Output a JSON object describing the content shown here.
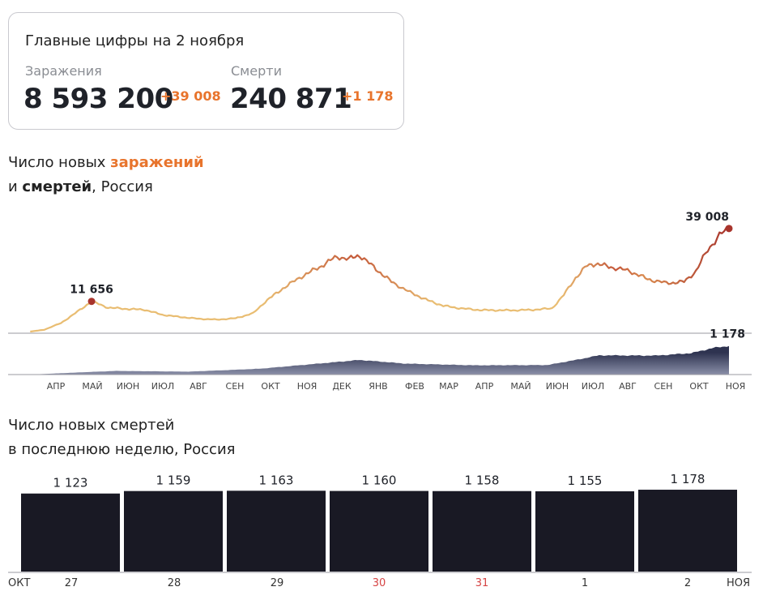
{
  "summary": {
    "title": "Главные цифры на 2 ноября",
    "infections": {
      "label": "Заражения",
      "value": "8 593 200",
      "delta": "+39 008"
    },
    "deaths": {
      "label": "Смерти",
      "value": "240 871",
      "delta": "+1 178"
    }
  },
  "chart1": {
    "title_part1": "Число новых ",
    "title_hl1": "заражений",
    "title_part2": "и ",
    "title_hl2": "смертей",
    "title_part3": ", Россия"
  },
  "chart2": {
    "title_line1": "Число новых смертей",
    "title_line2": "в последнюю неделю, Россия"
  },
  "colors": {
    "infections_start": "#e9bd72",
    "infections_end": "#a8342c",
    "deaths_area": "#4a5175",
    "bar_fill": "#191924",
    "weekend": "#d64545",
    "accent": "#e8742c"
  },
  "chart_data": [
    {
      "type": "line",
      "series": [
        {
          "name": "заражения",
          "x": [
            "2020-03-20",
            "2020-04-01",
            "2020-04-15",
            "2020-04-25",
            "2020-05-11",
            "2020-05-25",
            "2020-06-10",
            "2020-06-25",
            "2020-07-10",
            "2020-07-25",
            "2020-08-10",
            "2020-08-25",
            "2020-09-10",
            "2020-09-25",
            "2020-10-05",
            "2020-10-20",
            "2020-11-05",
            "2020-11-20",
            "2020-12-05",
            "2020-12-15",
            "2020-12-24",
            "2021-01-05",
            "2021-01-20",
            "2021-02-05",
            "2021-02-20",
            "2021-03-05",
            "2021-03-20",
            "2021-04-05",
            "2021-04-20",
            "2021-05-05",
            "2021-05-20",
            "2021-06-05",
            "2021-06-15",
            "2021-06-25",
            "2021-07-05",
            "2021-07-12",
            "2021-07-25",
            "2021-08-10",
            "2021-08-25",
            "2021-09-10",
            "2021-09-25",
            "2021-10-05",
            "2021-10-15",
            "2021-10-25",
            "2021-11-02"
          ],
          "values": [
            300,
            1000,
            3500,
            6500,
            11656,
            9300,
            8800,
            8500,
            6600,
            5800,
            5100,
            4800,
            5300,
            7200,
            11500,
            16500,
            21000,
            24500,
            28500,
            27500,
            29000,
            24500,
            19000,
            15000,
            12000,
            10000,
            9000,
            8400,
            8300,
            8300,
            8500,
            9000,
            14000,
            20500,
            25100,
            25800,
            24500,
            23000,
            20000,
            18500,
            19000,
            23000,
            31000,
            36500,
            39008
          ]
        }
      ],
      "ylim": [
        0,
        42000
      ],
      "annotations": [
        {
          "label": "11 656",
          "x": "2020-05-11",
          "y": 11656
        },
        {
          "label": "39 008",
          "x": "2021-11-02",
          "y": 39008
        }
      ]
    },
    {
      "type": "area",
      "series": [
        {
          "name": "смерти",
          "x": [
            "2020-03-20",
            "2020-05-01",
            "2020-06-01",
            "2020-08-01",
            "2020-10-01",
            "2020-12-01",
            "2020-12-24",
            "2021-02-01",
            "2021-04-01",
            "2021-06-01",
            "2021-06-25",
            "2021-07-15",
            "2021-09-01",
            "2021-10-01",
            "2021-10-20",
            "2021-11-02"
          ],
          "values": [
            0,
            90,
            150,
            120,
            240,
            500,
            600,
            450,
            380,
            390,
            600,
            790,
            780,
            880,
            1100,
            1178
          ]
        }
      ],
      "ylim": [
        0,
        3000
      ],
      "annotations": [
        {
          "label": "1 178",
          "x": "2021-11-02",
          "y": 1178
        }
      ],
      "x_ticks": [
        "АПР",
        "МАЙ",
        "ИЮН",
        "ИЮЛ",
        "АВГ",
        "СЕН",
        "ОКТ",
        "НОЯ",
        "ДЕК",
        "ЯНВ",
        "ФЕВ",
        "МАР",
        "АПР",
        "МАЙ",
        "ИЮН",
        "ИЮЛ",
        "АВГ",
        "СЕН",
        "ОКТ",
        "НОЯ"
      ]
    },
    {
      "type": "bar",
      "categories": [
        "27",
        "28",
        "29",
        "30",
        "31",
        "1",
        "2"
      ],
      "values": [
        1123,
        1159,
        1163,
        1160,
        1158,
        1155,
        1178
      ],
      "value_labels": [
        "1 123",
        "1 159",
        "1 163",
        "1 160",
        "1 158",
        "1 155",
        "1 178"
      ],
      "weekend": [
        false,
        false,
        false,
        true,
        true,
        false,
        false
      ],
      "month_labels": {
        "left": "ОКТ",
        "right": "НОЯ"
      },
      "ylim": [
        0,
        1400
      ]
    }
  ]
}
